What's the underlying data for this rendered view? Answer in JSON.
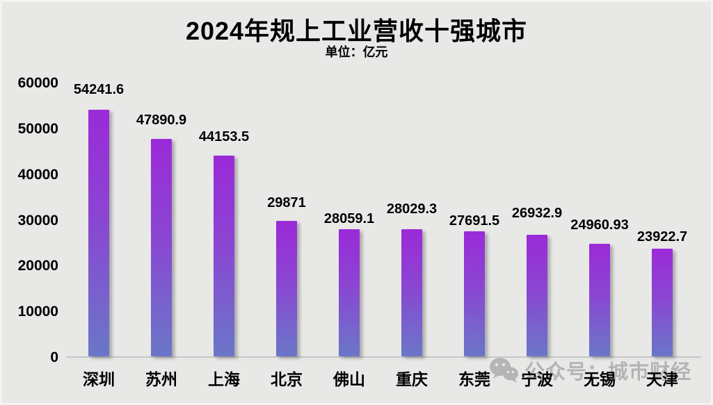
{
  "title": "2024年规上工业营收十强城市",
  "subtitle": "单位：亿元",
  "watermark": {
    "icon": "wechat-icon",
    "text": "公众号：城市财经"
  },
  "colors": {
    "background": "#e8e8e7",
    "text": "#000000",
    "axis_line": "#c6c6c6",
    "bar_gradient_top": "#9b2ad8",
    "bar_gradient_mid": "#8a46d2",
    "bar_gradient_bottom": "#6a77c8",
    "watermark_gray": "#8a8a8a"
  },
  "chart_data": {
    "type": "bar",
    "title": "2024年规上工业营收十强城市",
    "unit_label": "单位：亿元",
    "categories": [
      "深圳",
      "苏州",
      "上海",
      "北京",
      "佛山",
      "重庆",
      "东莞",
      "宁波",
      "无锡",
      "天津"
    ],
    "values": [
      54241.6,
      47890.9,
      44153.5,
      29871,
      28059.1,
      28029.3,
      27691.5,
      26932.9,
      24960.93,
      23922.7
    ],
    "value_labels": [
      "54241.6",
      "47890.9",
      "44153.5",
      "29871",
      "28059.1",
      "28029.3",
      "27691.5",
      "26932.9",
      "24960.93",
      "23922.7"
    ],
    "xlabel": "",
    "ylabel": "",
    "ylim": [
      0,
      60000
    ],
    "yticks": [
      0,
      10000,
      20000,
      30000,
      40000,
      50000,
      60000
    ],
    "grid": false,
    "legend": "none",
    "bar_style": "vertical gradient purple-to-slateblue with right drop shadow"
  }
}
